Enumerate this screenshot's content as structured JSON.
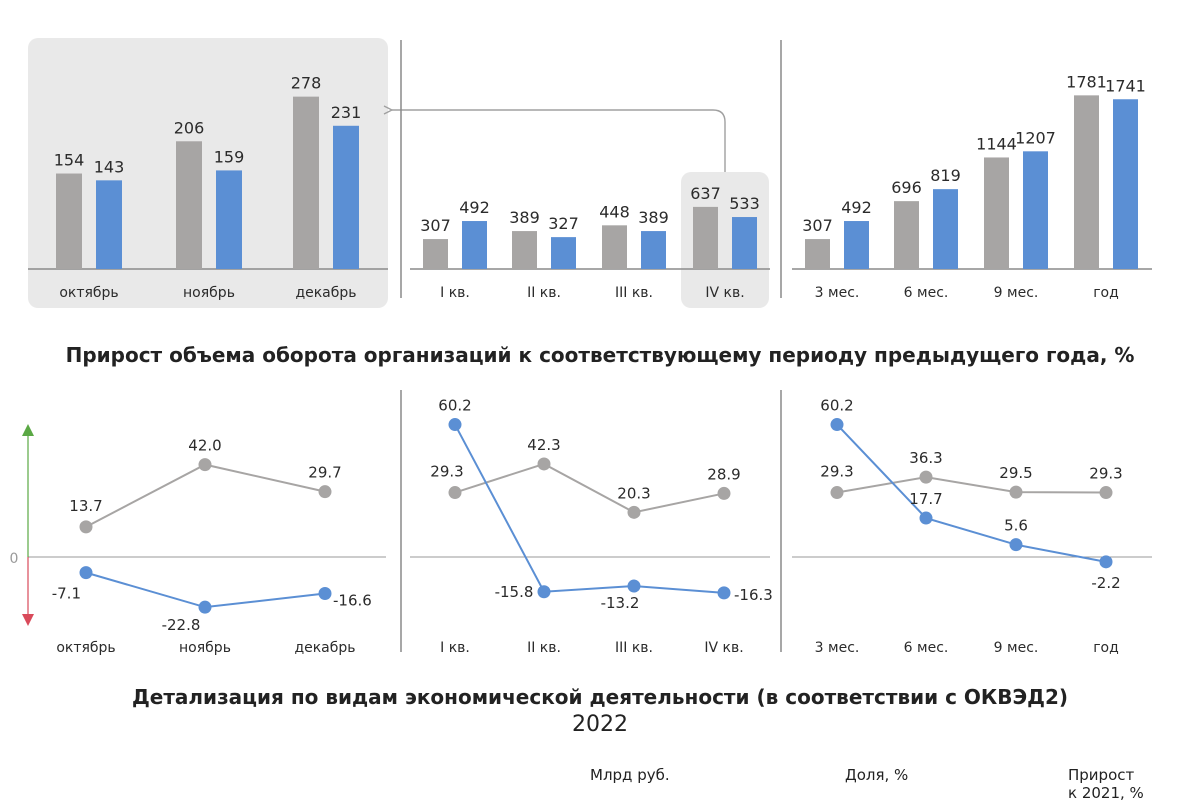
{
  "colors": {
    "prev_year": "#a7a5a4",
    "cur_year": "#5b8fd4",
    "growth": "#5aa844",
    "decline": "#d94a5a"
  },
  "chart_data": [
    {
      "type": "bar",
      "categories": [
        "октябрь",
        "ноябрь",
        "декабрь"
      ],
      "series": [
        {
          "values": [
            154,
            206,
            278
          ]
        },
        {
          "values": [
            143,
            159,
            231
          ]
        }
      ]
    },
    {
      "type": "bar",
      "categories": [
        "I кв.",
        "II кв.",
        "III кв.",
        "IV кв."
      ],
      "series": [
        {
          "values": [
            307,
            389,
            448,
            637
          ]
        },
        {
          "values": [
            492,
            327,
            389,
            533
          ]
        }
      ]
    },
    {
      "type": "bar",
      "categories": [
        "3 мес.",
        "6 мес.",
        "9 мес.",
        "год"
      ],
      "series": [
        {
          "values": [
            307,
            696,
            1144,
            1781
          ]
        },
        {
          "values": [
            492,
            819,
            1207,
            1741
          ]
        }
      ]
    },
    {
      "type": "line",
      "title": "Прирост объема оборота организаций к соответствующему периоду предыдущего года, %",
      "zero_label": "0",
      "categories": [
        "октябрь",
        "ноябрь",
        "декабрь"
      ],
      "series": [
        {
          "values": [
            13.7,
            42.0,
            29.7
          ]
        },
        {
          "values": [
            -7.1,
            -22.8,
            -16.6
          ]
        }
      ]
    },
    {
      "type": "line",
      "categories": [
        "I кв.",
        "II кв.",
        "III кв.",
        "IV кв."
      ],
      "series": [
        {
          "values": [
            29.3,
            42.3,
            20.3,
            28.9
          ]
        },
        {
          "values": [
            60.2,
            -15.8,
            -13.2,
            -16.3
          ]
        }
      ]
    },
    {
      "type": "line",
      "categories": [
        "3 мес.",
        "6 мес.",
        "9 мес.",
        "год"
      ],
      "series": [
        {
          "values": [
            29.3,
            36.3,
            29.5,
            29.3
          ]
        },
        {
          "values": [
            60.2,
            17.7,
            5.6,
            -2.2
          ]
        }
      ]
    }
  ],
  "section2": {
    "title": "Детализация по видам экономической деятельности (в соответствии с ОКВЭД2)",
    "year": "2022",
    "columns": [
      "Млрд руб.",
      "Доля, %",
      "Прирост\nк 2021, %"
    ]
  }
}
